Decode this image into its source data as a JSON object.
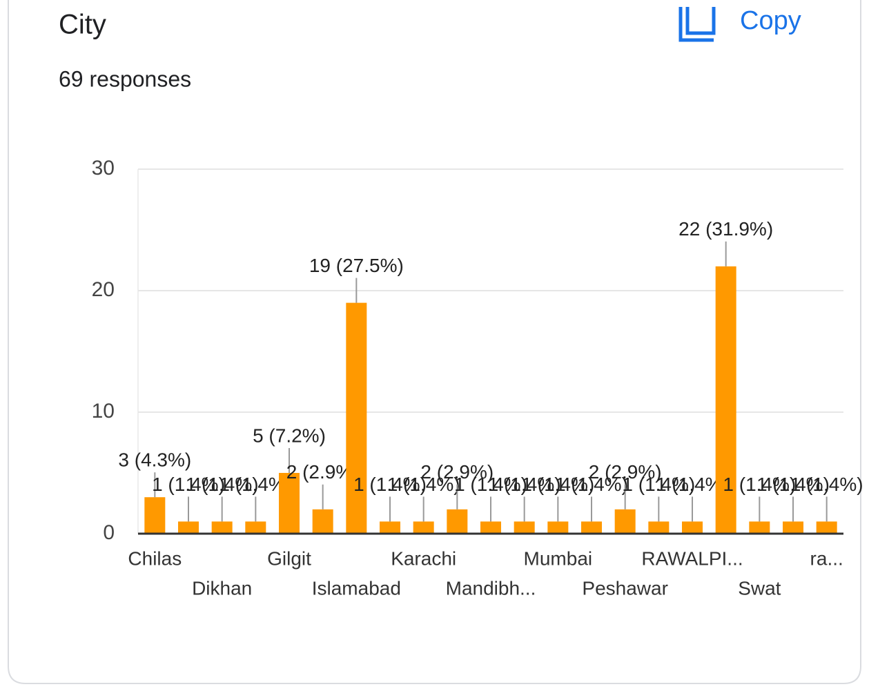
{
  "title": "City",
  "subtitle": "69 responses",
  "copy_button": "Copy",
  "chart_data": {
    "type": "bar",
    "categories": [
      "Chilas",
      null,
      "Dikhan",
      null,
      "Gilgit",
      null,
      "Islamabad",
      null,
      "Karachi",
      null,
      "Mandibh...",
      null,
      "Mumbai",
      null,
      "Peshawar",
      null,
      "RAWALPI...",
      null,
      "Swat",
      null,
      "ra..."
    ],
    "values": [
      3,
      1,
      1,
      1,
      5,
      2,
      19,
      1,
      1,
      2,
      1,
      1,
      1,
      1,
      2,
      1,
      1,
      22,
      1,
      1,
      1
    ],
    "value_labels": [
      "3 (4.3%)",
      "1 (1.4%)",
      "1 (1.4%)",
      "1 (1.4%)",
      "5 (7.2%)",
      "2 (2.9%)",
      "19 (27.5%)",
      "1 (1.4%)",
      "1 (1.4%)",
      "2 (2.9%)",
      "1 (1.4%)",
      "1 (1.4%)",
      "1 (1.4%)",
      "1 (1.4%)",
      "2 (2.9%)",
      "1 (1.4%)",
      "1 (1.4%)",
      "22 (31.9%)",
      "1 (1.4%)",
      "1 (1.4%)",
      "1 (1.4%)"
    ],
    "color": "#ff9900",
    "ylim": [
      0,
      30
    ],
    "yticks": [
      0,
      10,
      20,
      30
    ],
    "grid": true
  }
}
